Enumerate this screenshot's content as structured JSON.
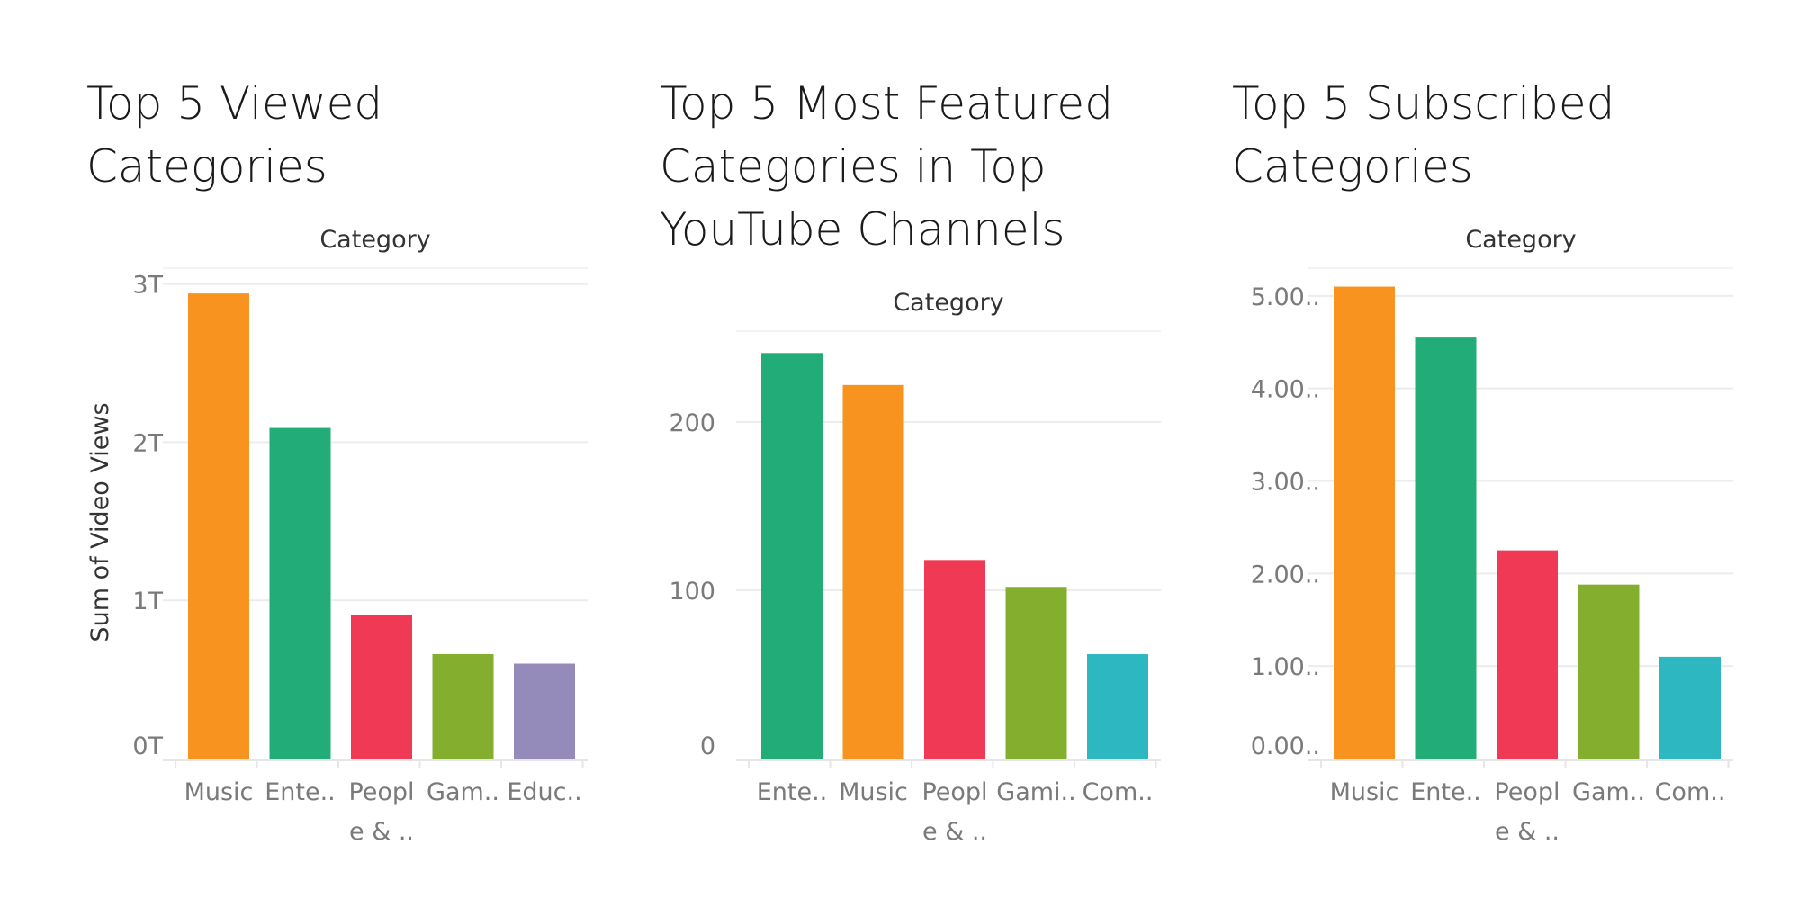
{
  "chart_data": [
    {
      "type": "bar",
      "title": "Top 5 Viewed\nCategories",
      "header": "Category",
      "ylabel": "Sum of Video Views",
      "categories": [
        "Music",
        "Ente..",
        "Peopl\ne & ..",
        "Gam..",
        "Educ.."
      ],
      "values": [
        2.94,
        2.09,
        0.91,
        0.66,
        0.6
      ],
      "unit": "T",
      "ylim": [
        0,
        3.1
      ],
      "yticks": [
        0,
        1,
        2,
        3
      ],
      "yticklabels": [
        "0T",
        "1T",
        "2T",
        "3T"
      ],
      "colors": [
        "#f7931e",
        "#22ac77",
        "#ef3955",
        "#84ae2e",
        "#948bba"
      ],
      "grid": true
    },
    {
      "type": "bar",
      "title": "Top 5 Most Featured\nCategories in Top\nYouTube Channels",
      "header": "Category",
      "ylabel": "",
      "categories": [
        "Ente..",
        "Music",
        "Peopl\ne & ..",
        "Gami..",
        "Com.."
      ],
      "values": [
        241,
        222,
        118,
        102,
        62
      ],
      "ylim": [
        0,
        254
      ],
      "yticks": [
        0,
        100,
        200
      ],
      "yticklabels": [
        "0",
        "100",
        "200"
      ],
      "colors": [
        "#22ac77",
        "#f7931e",
        "#ef3955",
        "#84ae2e",
        "#2db8c1"
      ],
      "grid": true
    },
    {
      "type": "bar",
      "title": "Top 5 Subscribed\nCategories",
      "header": "Category",
      "ylabel": "",
      "categories": [
        "Music",
        "Ente..",
        "Peopl\ne & ..",
        "Gam..",
        "Com.."
      ],
      "values": [
        5.1,
        4.55,
        2.25,
        1.88,
        1.1
      ],
      "ylim": [
        0,
        5.3
      ],
      "yticks": [
        0,
        1,
        2,
        3,
        4,
        5
      ],
      "yticklabels": [
        "0.00..",
        "1.00..",
        "2.00..",
        "3.00..",
        "4.00..",
        "5.00.."
      ],
      "colors": [
        "#f7931e",
        "#22ac77",
        "#ef3955",
        "#84ae2e",
        "#2db8c1"
      ],
      "grid": true
    }
  ]
}
